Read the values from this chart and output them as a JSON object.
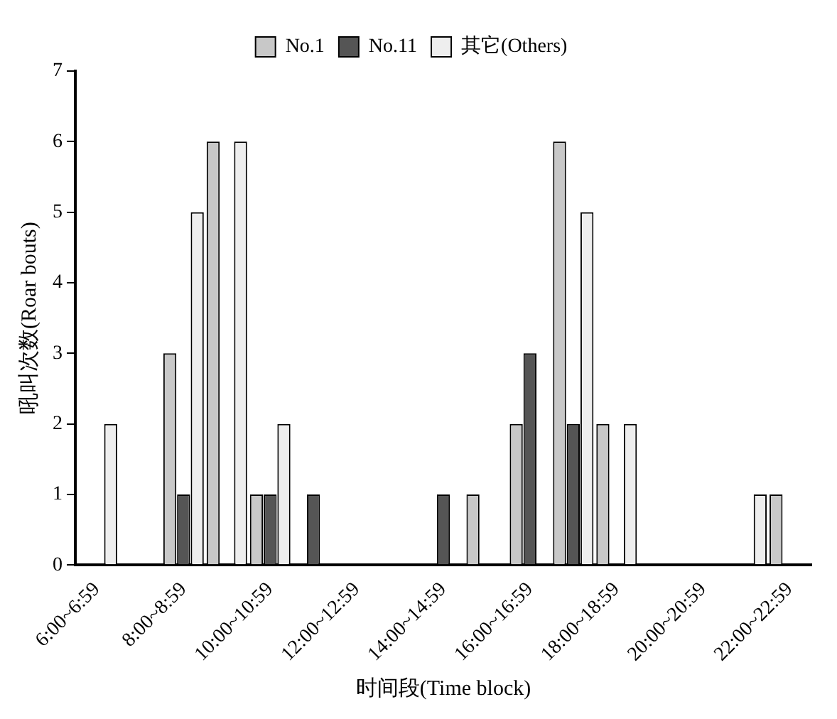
{
  "chart_data": {
    "type": "bar",
    "xlabel": "时间段(Time block)",
    "ylabel": "吼叫次数(Roar bouts)",
    "categories": [
      "6:00~6:59",
      null,
      "8:00~8:59",
      null,
      "10:00~10:59",
      null,
      "12:00~12:59",
      null,
      "14:00~14:59",
      null,
      "16:00~16:59",
      null,
      "18:00~18:59",
      null,
      "20:00~20:59",
      null,
      "22:00~22:59"
    ],
    "series": [
      {
        "name": "No.1",
        "color": "#c8c8c8",
        "values": [
          0,
          0,
          3,
          6,
          1,
          0,
          0,
          0,
          0,
          1,
          2,
          6,
          2,
          0,
          0,
          0,
          1
        ]
      },
      {
        "name": "No.11",
        "color": "#555555",
        "values": [
          0,
          0,
          1,
          0,
          1,
          1,
          0,
          0,
          1,
          0,
          3,
          2,
          0,
          0,
          0,
          0,
          0
        ]
      },
      {
        "name": "其它(Others)",
        "color": "#eeeeee",
        "values": [
          2,
          0,
          5,
          6,
          2,
          0,
          0,
          0,
          0,
          0,
          0,
          5,
          2,
          0,
          0,
          1,
          0
        ]
      }
    ],
    "ylim": [
      0,
      7
    ],
    "yticks": [
      0,
      1,
      2,
      3,
      4,
      5,
      6,
      7
    ],
    "grid": false,
    "legend": "top"
  }
}
